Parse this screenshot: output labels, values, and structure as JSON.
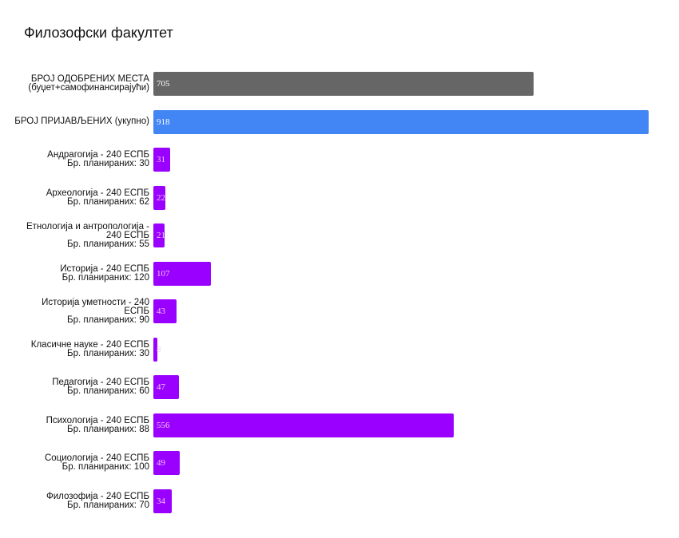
{
  "title": "Филозофски факултет",
  "colors": {
    "approved": "#666666",
    "applied": "#4285f4",
    "program": "#9900ff"
  },
  "rows": [
    {
      "label_lines": [
        "БРОЈ ОДОБРЕНИХ МЕСТА",
        "(буџет+самофинансирајући)"
      ],
      "value": 705,
      "kind": "approved"
    },
    {
      "label_lines": [
        "БРОЈ ПРИЈАВЉЕНИХ (укупно)"
      ],
      "value": 918,
      "kind": "applied"
    },
    {
      "label_lines": [
        "Андрагогија - 240  ЕСПБ",
        "Бр. планираних: 30"
      ],
      "value": 31,
      "kind": "program"
    },
    {
      "label_lines": [
        "Археологија - 240  ЕСПБ",
        "Бр. планираних: 62"
      ],
      "value": 22,
      "kind": "program"
    },
    {
      "label_lines": [
        "Етнологија и антропологија -",
        "240  ЕСПБ",
        "Бр. планираних: 55"
      ],
      "value": 21,
      "kind": "program"
    },
    {
      "label_lines": [
        "Историја - 240  ЕСПБ",
        "Бр. планираних: 120"
      ],
      "value": 107,
      "kind": "program"
    },
    {
      "label_lines": [
        "Историја уметности - 240",
        "ЕСПБ",
        "Бр. планираних: 90"
      ],
      "value": 43,
      "kind": "program"
    },
    {
      "label_lines": [
        "Класичне науке - 240  ЕСПБ",
        "Бр. планираних: 30"
      ],
      "value": 8,
      "kind": "program"
    },
    {
      "label_lines": [
        "Педагогија - 240  ЕСПБ",
        "Бр. планираних: 60"
      ],
      "value": 47,
      "kind": "program"
    },
    {
      "label_lines": [
        "Психологија - 240  ЕСПБ",
        "Бр. планираних: 88"
      ],
      "value": 556,
      "kind": "program"
    },
    {
      "label_lines": [
        "Социологија - 240  ЕСПБ",
        "Бр. планираних: 100"
      ],
      "value": 49,
      "kind": "program"
    },
    {
      "label_lines": [
        "Филозофија - 240  ЕСПБ",
        "Бр. планираних: 70"
      ],
      "value": 34,
      "kind": "program"
    }
  ],
  "chart_data": {
    "type": "bar",
    "orientation": "horizontal",
    "title": "Филозофски факултет",
    "xlabel": "",
    "ylabel": "",
    "grid": false,
    "legend": null,
    "categories": [
      "БРОЈ ОДОБРЕНИХ МЕСТА (буџет+самофинансирајући)",
      "БРОЈ ПРИЈАВЉЕНИХ (укупно)",
      "Андрагогија - 240 ЕСПБ Бр. планираних: 30",
      "Археологија - 240 ЕСПБ Бр. планираних: 62",
      "Етнологија и антропологија - 240 ЕСПБ Бр. планираних: 55",
      "Историја - 240 ЕСПБ Бр. планираних: 120",
      "Историја уметности - 240 ЕСПБ Бр. планираних: 90",
      "Класичне науке - 240 ЕСПБ Бр. планираних: 30",
      "Педагогија - 240 ЕСПБ Бр. планираних: 60",
      "Психологија - 240 ЕСПБ Бр. планираних: 88",
      "Социологија - 240 ЕСПБ Бр. планираних: 100",
      "Филозофија - 240 ЕСПБ Бр. планираних: 70"
    ],
    "values": [
      705,
      918,
      31,
      22,
      21,
      107,
      43,
      8,
      47,
      556,
      49,
      34
    ],
    "bar_colors": [
      "#666666",
      "#4285f4",
      "#9900ff",
      "#9900ff",
      "#9900ff",
      "#9900ff",
      "#9900ff",
      "#9900ff",
      "#9900ff",
      "#9900ff",
      "#9900ff",
      "#9900ff"
    ],
    "data_labels": true,
    "xlim": [
      0,
      918
    ]
  }
}
